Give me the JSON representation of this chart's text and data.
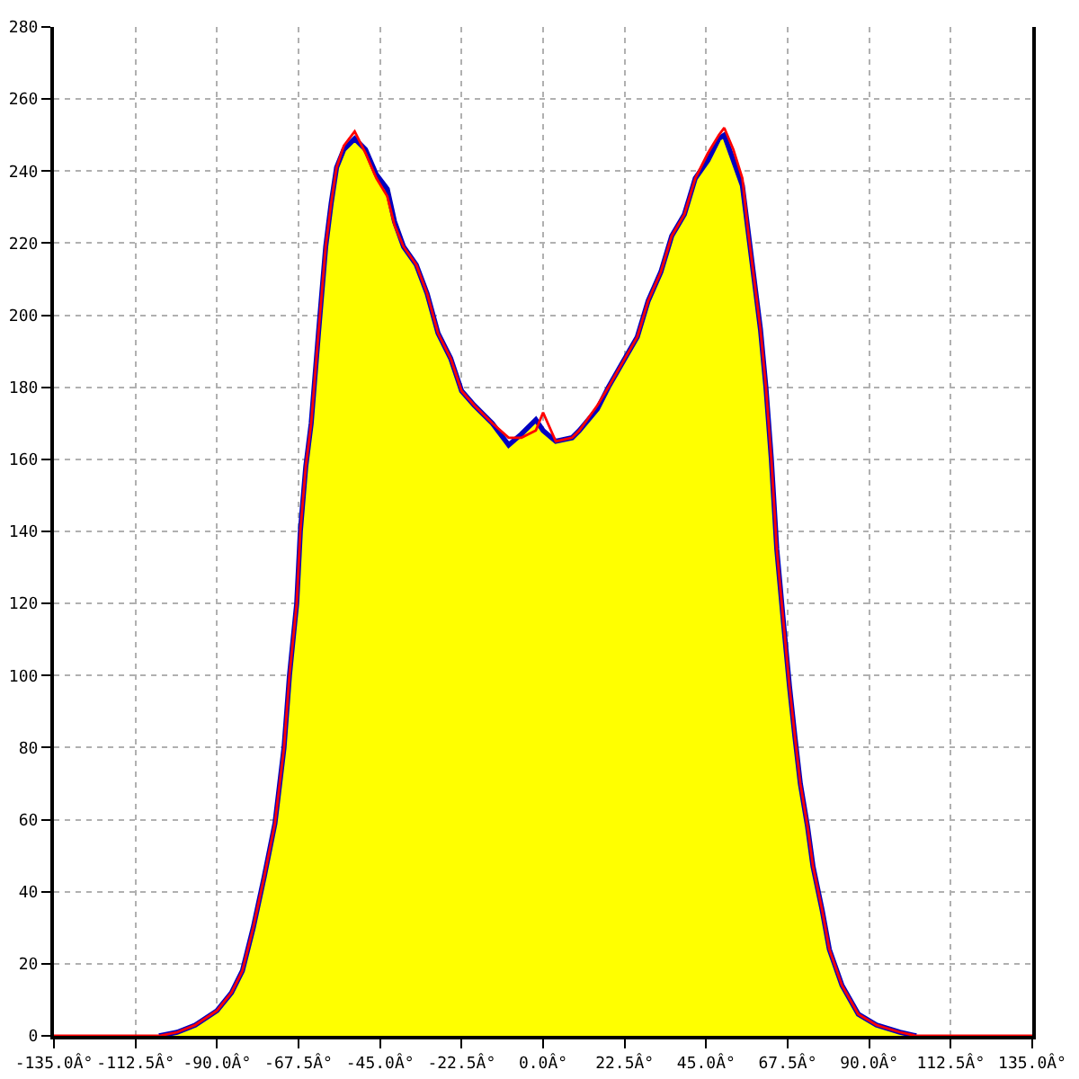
{
  "chart_data": {
    "type": "area",
    "x": [
      -135,
      -106,
      -101,
      -96,
      -90,
      -86,
      -83,
      -80,
      -77,
      -74,
      -71.5,
      -70,
      -68,
      -67,
      -65.5,
      -64,
      -62,
      -60,
      -58.5,
      -57,
      -55,
      -52,
      -49,
      -46,
      -43,
      -41,
      -38.5,
      -35,
      -32,
      -29,
      -25.5,
      -22.5,
      -19,
      -14,
      -9.5,
      -6,
      -2,
      0,
      3.5,
      8,
      10,
      15,
      18,
      22,
      26,
      29,
      32.5,
      35.5,
      39,
      42,
      45.5,
      48.5,
      50,
      52.5,
      55,
      56.5,
      58,
      60,
      61.5,
      63,
      64.5,
      66.5,
      68,
      69.5,
      71,
      73,
      74.5,
      77,
      79,
      82.5,
      87,
      92,
      98.5,
      103,
      135
    ],
    "series": [
      {
        "color": "#ffff00",
        "values": [
          0,
          0,
          1,
          3,
          7,
          12,
          18,
          30,
          44,
          59,
          80,
          100,
          120,
          140,
          158,
          170,
          195,
          219,
          231,
          241,
          246,
          249,
          246,
          239,
          235,
          226,
          219,
          214,
          206,
          195,
          188,
          179,
          175,
          170,
          164,
          167,
          171,
          168,
          165,
          166,
          168,
          174,
          180,
          187,
          194,
          204,
          212,
          222,
          228,
          238,
          243,
          249,
          250,
          243,
          236,
          224,
          212,
          196,
          180,
          160,
          135,
          113,
          97,
          83,
          70,
          58,
          47,
          35,
          24,
          14,
          6,
          3,
          1,
          0,
          0
        ]
      },
      {
        "type": "line",
        "color": "#0000c0",
        "x": [
          -106,
          -101,
          -96,
          -90,
          -86,
          -83,
          -80,
          -77,
          -74,
          -71.5,
          -70,
          -68,
          -67,
          -65.5,
          -64,
          -62,
          -60,
          -58.5,
          -57,
          -55,
          -52,
          -49,
          -46,
          -43,
          -41,
          -38.5,
          -35,
          -32,
          -29,
          -25.5,
          -22.5,
          -19,
          -14,
          -9.5,
          -6,
          -2,
          0,
          3.5,
          8,
          10,
          15,
          18,
          22,
          26,
          29,
          32.5,
          35.5,
          39,
          42,
          45.5,
          48.5,
          50,
          52.5,
          55,
          56.5,
          58,
          60,
          61.5,
          63,
          64.5,
          66.5,
          68,
          69.5,
          71,
          73,
          74.5,
          77,
          79,
          82.5,
          87,
          92,
          98.5,
          103
        ],
        "values": [
          0,
          1,
          3,
          7,
          12,
          18,
          30,
          44,
          59,
          80,
          100,
          120,
          140,
          158,
          170,
          195,
          219,
          231,
          241,
          246,
          249,
          246,
          239,
          235,
          226,
          219,
          214,
          206,
          195,
          188,
          179,
          175,
          170,
          164,
          167,
          171,
          168,
          165,
          166,
          168,
          174,
          180,
          187,
          194,
          204,
          212,
          222,
          228,
          238,
          243,
          249,
          250,
          243,
          236,
          224,
          212,
          196,
          180,
          160,
          135,
          113,
          97,
          83,
          70,
          58,
          47,
          35,
          24,
          14,
          6,
          3,
          1,
          0
        ]
      },
      {
        "type": "line",
        "color": "#ff0000",
        "values": [
          0,
          0,
          1,
          3,
          7,
          12,
          18,
          30,
          44,
          59,
          80,
          100,
          120,
          140,
          158,
          170,
          195,
          219,
          231,
          241,
          247,
          251,
          245,
          238,
          233,
          225,
          219,
          214,
          206,
          195,
          188,
          179,
          175,
          170,
          166,
          166,
          168,
          173,
          165,
          166,
          168,
          175,
          180,
          187,
          194,
          204,
          212,
          222,
          228,
          238,
          245,
          250,
          252,
          246,
          238,
          224,
          212,
          196,
          180,
          160,
          135,
          113,
          97,
          83,
          70,
          58,
          47,
          35,
          24,
          14,
          6,
          3,
          1,
          0,
          0
        ]
      }
    ],
    "xlim": [
      -135,
      135
    ],
    "xticks": [
      {
        "value": -135,
        "label": "-135.0Â°"
      },
      {
        "value": -112.5,
        "label": "-112.5Â°"
      },
      {
        "value": -90,
        "label": "-90.0Â°"
      },
      {
        "value": -67.5,
        "label": "-67.5Â°"
      },
      {
        "value": -45,
        "label": "-45.0Â°"
      },
      {
        "value": -22.5,
        "label": "-22.5Â°"
      },
      {
        "value": 0,
        "label": "0.0Â°"
      },
      {
        "value": 22.5,
        "label": "22.5Â°"
      },
      {
        "value": 45,
        "label": "45.0Â°"
      },
      {
        "value": 67.5,
        "label": "67.5Â°"
      },
      {
        "value": 90,
        "label": "90.0Â°"
      },
      {
        "value": 112.5,
        "label": "112.5Â°"
      },
      {
        "value": 135,
        "label": "135.0Â°"
      }
    ],
    "ylim": [
      0,
      280
    ],
    "yticks": [
      0,
      20,
      40,
      60,
      80,
      100,
      120,
      140,
      160,
      180,
      200,
      220,
      240,
      260,
      280
    ],
    "grid": true
  }
}
